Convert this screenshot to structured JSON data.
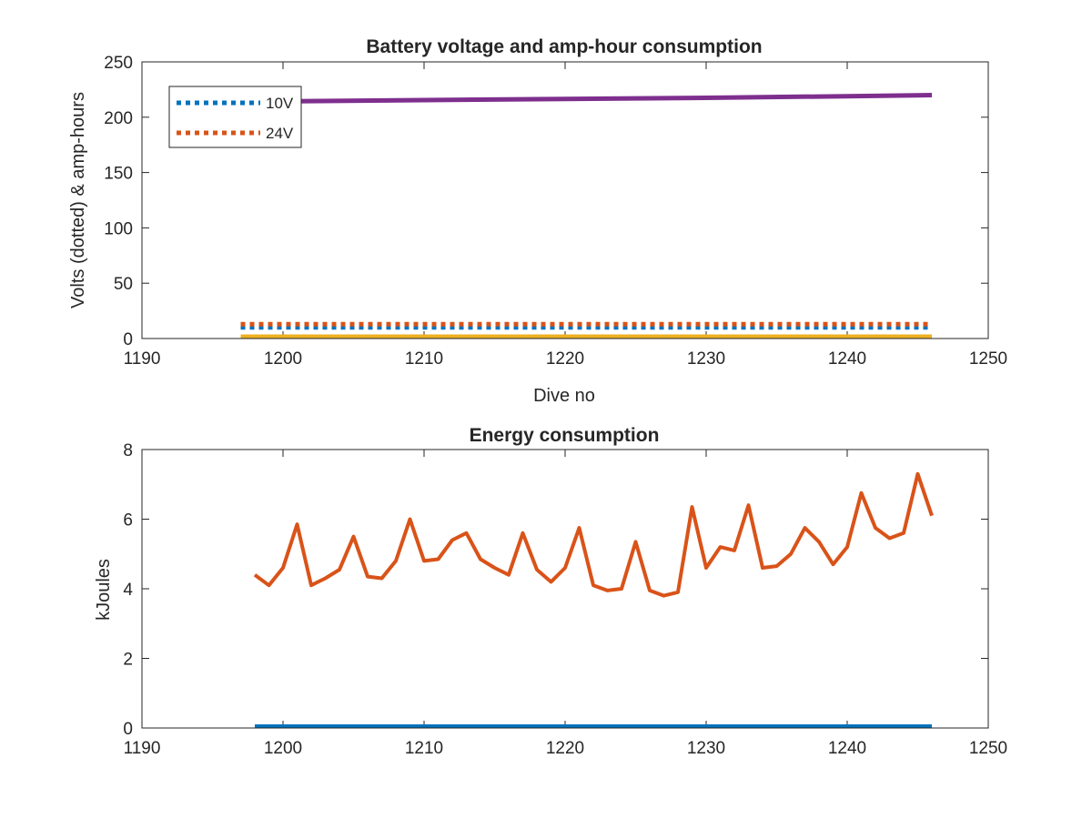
{
  "chart_data": [
    {
      "type": "line",
      "title": "Battery voltage and amp-hour consumption",
      "xlabel": "Dive no",
      "ylabel": "Volts (dotted) & amp-hours",
      "xlim": [
        1190,
        1250
      ],
      "ylim": [
        0,
        250
      ],
      "xticks": [
        1190,
        1200,
        1210,
        1220,
        1230,
        1240,
        1250
      ],
      "yticks": [
        0,
        50,
        100,
        150,
        200,
        250
      ],
      "grid": false,
      "legend_location": "top-left",
      "series": [
        {
          "name": "10V",
          "style": "dotted",
          "color": "#0072bd",
          "x": [
            1197,
            1246
          ],
          "y": [
            10,
            10
          ]
        },
        {
          "name": "24V",
          "style": "dotted",
          "color": "#d95319",
          "x": [
            1197,
            1246
          ],
          "y": [
            13,
            13
          ]
        },
        {
          "name": "",
          "style": "solid",
          "color": "#edb120",
          "x": [
            1197,
            1246
          ],
          "y": [
            0,
            0
          ]
        },
        {
          "name": "",
          "style": "solid",
          "color": "#7e2f8e",
          "x": [
            1197,
            1210,
            1220,
            1230,
            1240,
            1246
          ],
          "y": [
            214,
            215.5,
            216.5,
            217.5,
            219,
            220
          ]
        }
      ]
    },
    {
      "type": "line",
      "title": "Energy consumption",
      "xlabel": "",
      "ylabel": "kJoules",
      "xlim": [
        1190,
        1250
      ],
      "ylim": [
        0,
        8
      ],
      "xticks": [
        1190,
        1200,
        1210,
        1220,
        1230,
        1240,
        1250
      ],
      "yticks": [
        0,
        2,
        4,
        6,
        8
      ],
      "grid": false,
      "series": [
        {
          "name": "",
          "style": "solid",
          "color": "#0072bd",
          "x": [
            1198,
            1246
          ],
          "y": [
            0,
            0
          ]
        },
        {
          "name": "",
          "style": "solid",
          "color": "#d95319",
          "x": [
            1198,
            1199,
            1200,
            1201,
            1202,
            1203,
            1204,
            1205,
            1206,
            1207,
            1208,
            1209,
            1210,
            1211,
            1212,
            1213,
            1214,
            1215,
            1216,
            1217,
            1218,
            1219,
            1220,
            1221,
            1222,
            1223,
            1224,
            1225,
            1226,
            1227,
            1228,
            1229,
            1230,
            1231,
            1232,
            1233,
            1234,
            1235,
            1236,
            1237,
            1238,
            1239,
            1240,
            1241,
            1242,
            1243,
            1244,
            1245,
            1246
          ],
          "y": [
            4.4,
            4.1,
            4.6,
            5.85,
            4.1,
            4.3,
            4.55,
            5.5,
            4.35,
            4.3,
            4.8,
            6.0,
            4.8,
            4.85,
            5.4,
            5.6,
            4.85,
            4.6,
            4.4,
            5.6,
            4.55,
            4.2,
            4.6,
            5.75,
            4.1,
            3.95,
            4.0,
            5.35,
            3.95,
            3.8,
            3.9,
            6.35,
            4.6,
            5.2,
            5.1,
            6.4,
            4.6,
            4.65,
            5.0,
            5.75,
            5.35,
            4.7,
            5.2,
            6.75,
            5.75,
            5.45,
            5.6,
            7.3,
            6.1
          ]
        }
      ]
    }
  ]
}
